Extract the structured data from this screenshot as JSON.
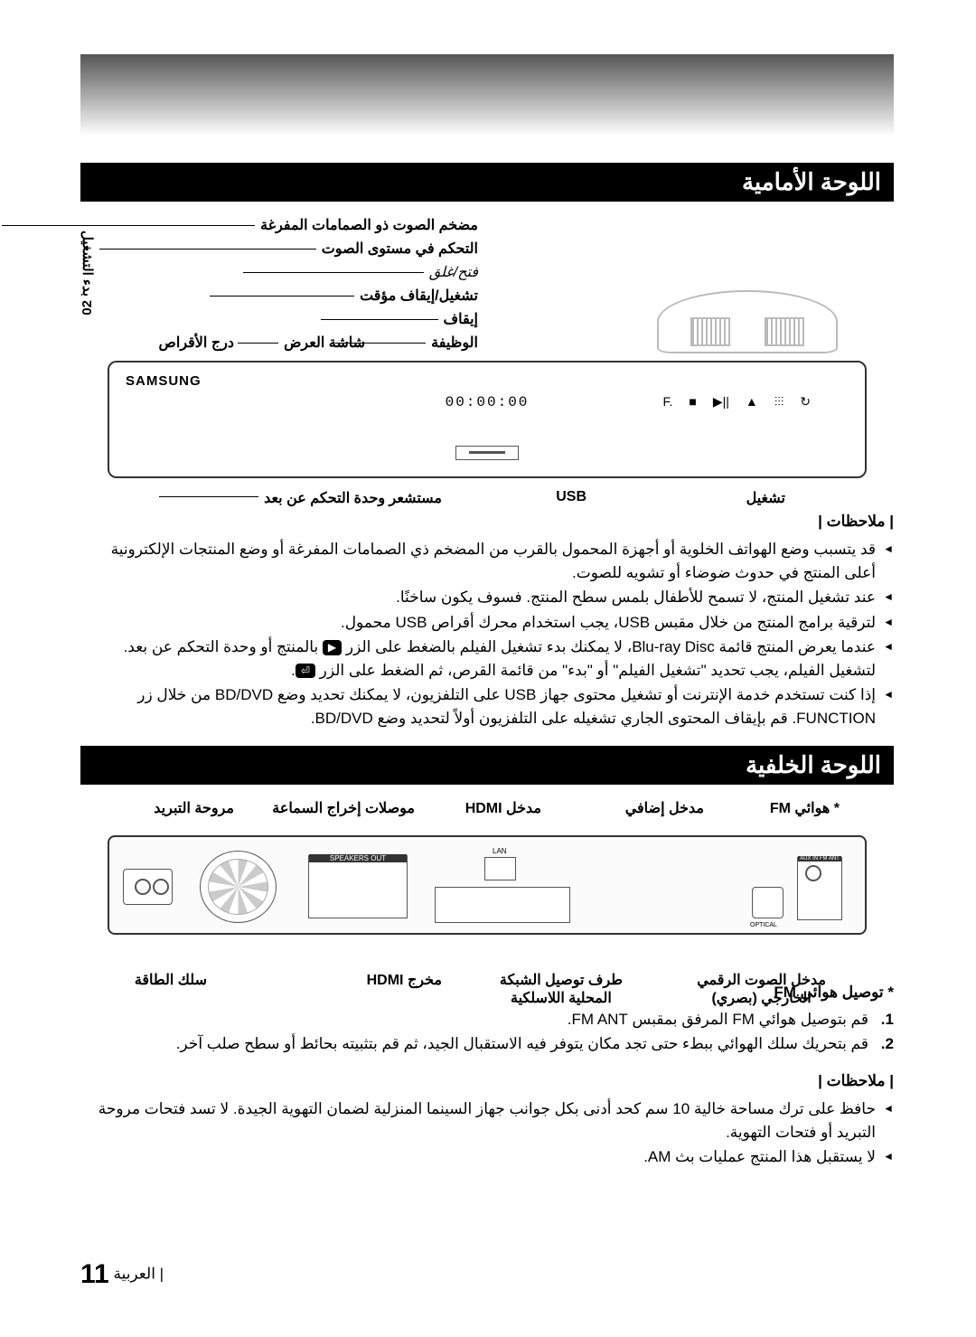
{
  "side_tab": {
    "number": "02",
    "text": "بدء التشغيل"
  },
  "front_panel": {
    "header": "اللوحة الأمامية",
    "brand": "SAMSUNG",
    "display": "00:00:00",
    "buttons": [
      "F.",
      "■",
      "▶||",
      "▲",
      "⫶⫶⫶",
      "↻"
    ],
    "labels": {
      "l1": "مضخم الصوت ذو الصمامات المفرغة",
      "l2": "التحكم في مستوى الصوت",
      "l3": "فتح/غلق",
      "l4": "تشغيل/إيقاف مؤقت",
      "l5": "إيقاف",
      "l6": "الوظيفة",
      "l7a": "شاشة العرض",
      "l7b": "درج الأقراص",
      "bl1": "تشغيل",
      "bl2": "USB",
      "bl3": "مستشعر وحدة التحكم عن بعد"
    },
    "notes_heading": "| ملاحظات |",
    "notes": [
      "قد يتسبب وضع الهواتف الخلوية أو أجهزة المحمول بالقرب من المضخم ذي الصمامات المفرغة أو وضع المنتجات الإلكترونية أعلى المنتج في حدوث ضوضاء أو تشويه للصوت.",
      "عند تشغيل المنتج، لا تسمح للأطفال بلمس سطح المنتج. فسوف يكون ساخنًا.",
      "لترقية برامج المنتج من خلال مقبس USB، يجب استخدام محرك أقراص USB محمول.",
      "عندما يعرض المنتج قائمة Blu-ray Disc، لا يمكنك بدء تشغيل الفيلم بالضغط على الزر {PLAY} بالمنتج أو وحدة التحكم عن بعد. لتشغيل الفيلم، يجب تحديد \"تشغيل الفيلم\" أو \"بدء\" من قائمة القرص، ثم الضغط على الزر {ENTER}.",
      "إذا كنت تستخدم خدمة الإنترنت أو تشغيل محتوى جهاز USB على التلفزيون، لا يمكنك تحديد وضع BD/DVD من خلال زر FUNCTION. قم بإيقاف المحتوى الجاري تشغيله على التلفزيون أولاً لتحديد وضع BD/DVD."
    ],
    "icons": {
      "play": "▶",
      "enter": "⏎"
    }
  },
  "rear_panel": {
    "header": "اللوحة الخلفية",
    "top_labels": {
      "fm": "* هوائي FM",
      "aux": "مدخل إضافي",
      "hdmi_in": "مدخل HDMI",
      "speakers": "موصلات إخراج السماعة",
      "fan": "مروحة التبريد"
    },
    "bottom_labels": {
      "digital": "مدخل الصوت الرقمي\nالخارجي (بصري)",
      "lan": "طرف توصيل الشبكة\nالمحلية اللاسلكية",
      "hdmi_out": "مخرج HDMI",
      "power": "سلك الطاقة"
    },
    "fm_heading": "* توصيل هوائي FM",
    "fm_steps": [
      "قم بتوصيل هوائي FM المرفق بمقبس FM ANT.",
      "قم بتحريك سلك الهوائي ببطء حتى تجد مكان يتوفر فيه الاستقبال الجيد، ثم قم بتثبيته بحائط أو سطح صلب آخر."
    ],
    "notes_heading": "| ملاحظات |",
    "notes": [
      "حافظ على ترك مساحة خالية 10 سم كحد أدنى بكل جوانب جهاز السينما المنزلية لضمان التهوية الجيدة. لا تسد فتحات مروحة التبريد أو فتحات التهوية.",
      "لا يستقبل هذا المنتج عمليات بث AM."
    ]
  },
  "footer": {
    "lang": "العربية",
    "page": "11"
  },
  "colors": {
    "header_bg": "#000000",
    "header_fg": "#ffffff",
    "text": "#000000",
    "device_border": "#333333"
  }
}
